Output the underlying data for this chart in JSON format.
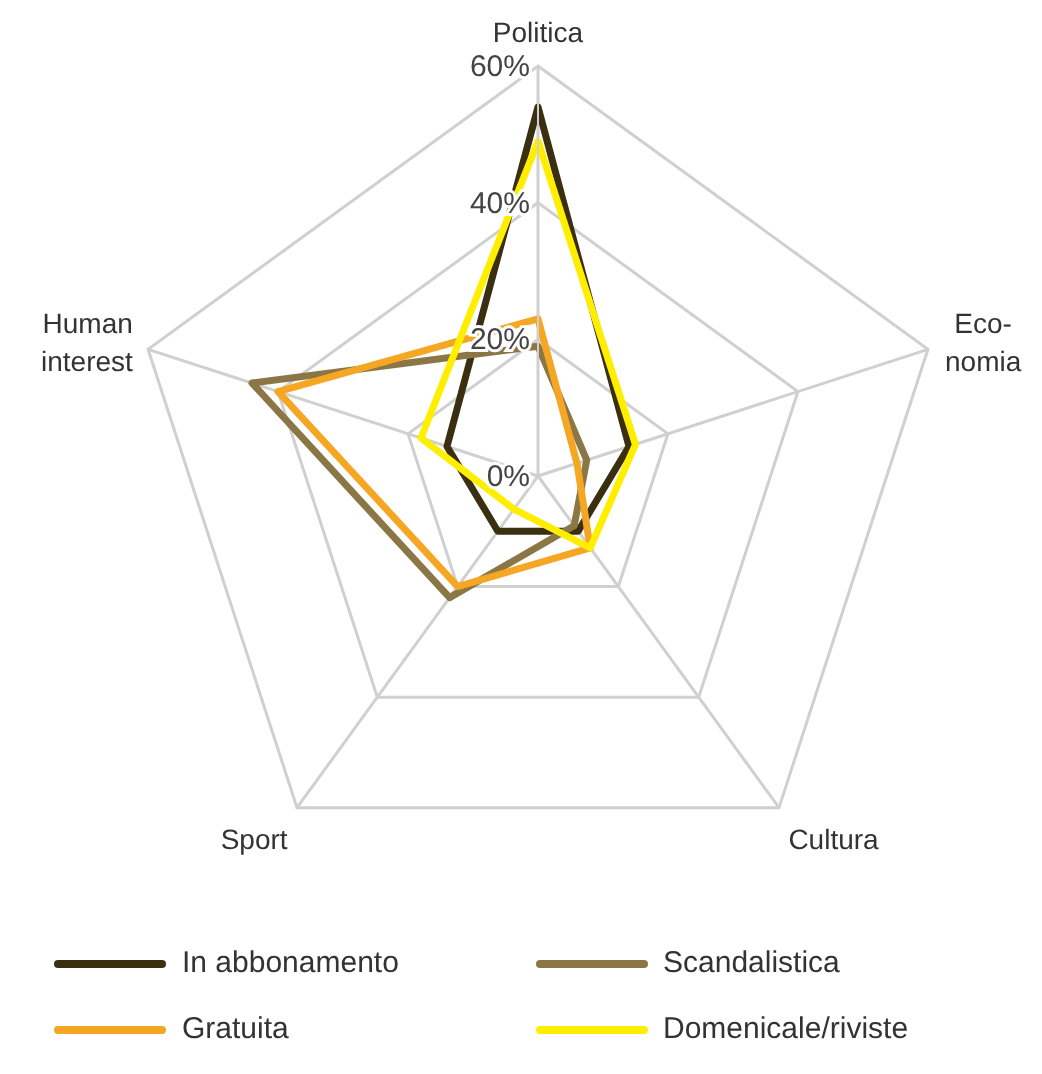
{
  "chart_data": {
    "type": "radar",
    "categories": [
      "Politica",
      "Eco-\nnomia",
      "Cultura",
      "Sport",
      "Human\ninterest"
    ],
    "series": [
      {
        "name": "In abbonamento",
        "color": "#3a2f10",
        "values": [
          54,
          14,
          10,
          10,
          14
        ]
      },
      {
        "name": "Scandalistica",
        "color": "#8b7645",
        "values": [
          19,
          7.5,
          9,
          22,
          44
        ]
      },
      {
        "name": "Gratuita",
        "color": "#f5a623",
        "values": [
          23,
          6,
          13,
          20,
          40
        ]
      },
      {
        "name": "Domenicale/riviste",
        "color": "#ffee00",
        "values": [
          49,
          15,
          13,
          6,
          18
        ]
      }
    ],
    "ylim": [
      0,
      60
    ],
    "yticks": [
      {
        "value": 0,
        "label": "0%"
      },
      {
        "value": 20,
        "label": "20%"
      },
      {
        "value": 40,
        "label": "40%"
      },
      {
        "value": 60,
        "label": "60%"
      }
    ],
    "grid": true,
    "legend": "bottom",
    "marker": "none",
    "line_style": "solid"
  }
}
